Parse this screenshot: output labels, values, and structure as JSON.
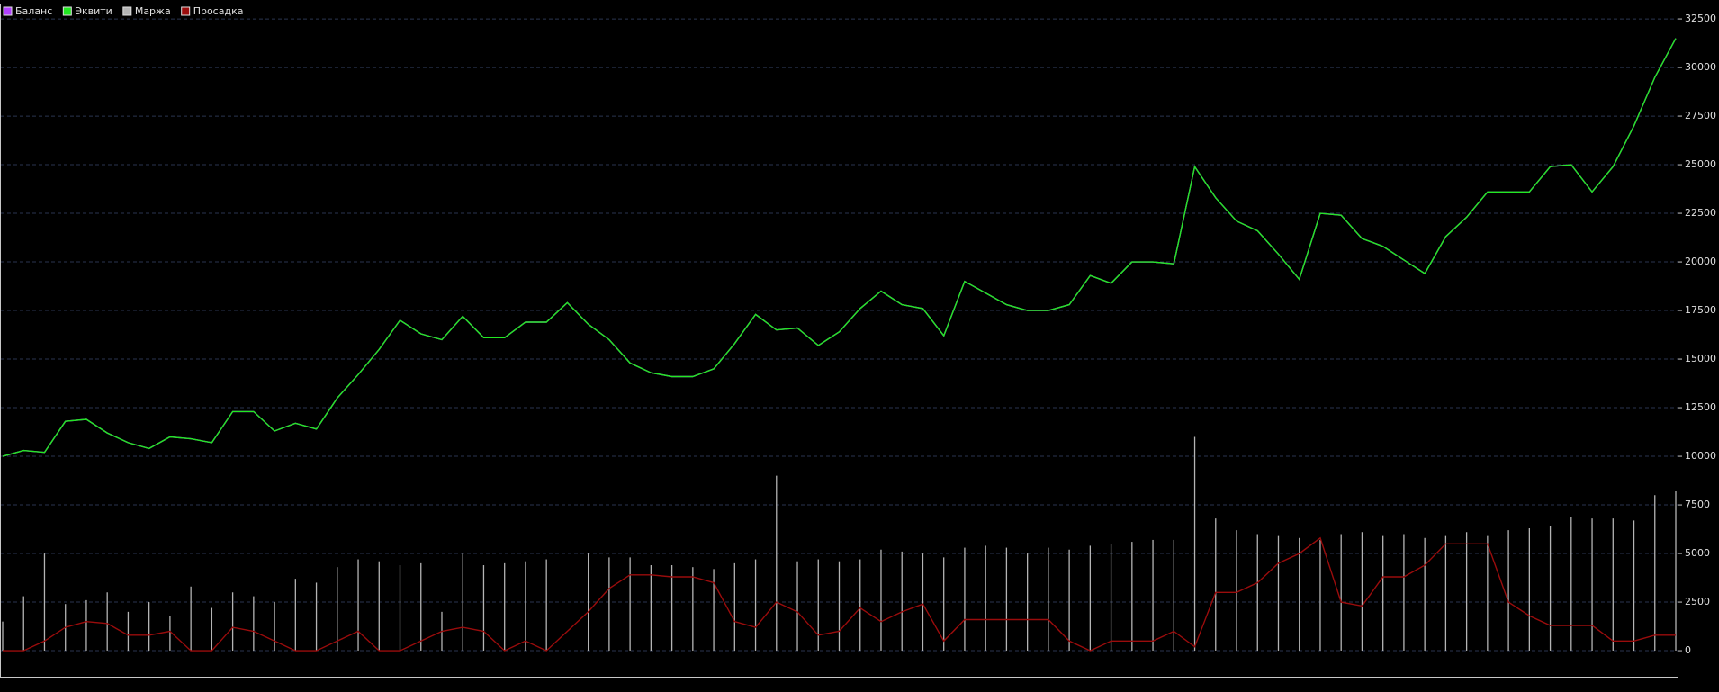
{
  "chart_data": {
    "type": "line",
    "ylim": [
      -1340,
      33290
    ],
    "yticks": [
      0,
      2500,
      5000,
      7500,
      10000,
      12500,
      15000,
      17500,
      20000,
      22500,
      25000,
      27500,
      30000,
      32500
    ],
    "grid": true,
    "legend": "top-left",
    "series": [
      {
        "name": "Баланс",
        "color": "#b040ff",
        "style": "line",
        "values": [
          10000,
          10300,
          10200,
          11800,
          11900,
          11200,
          10700,
          10400,
          11000,
          10900,
          10700,
          12300,
          12300,
          11300,
          11700,
          11400,
          13000,
          14200,
          15500,
          17000,
          16300,
          16000,
          17200,
          16100,
          16100,
          16900,
          16900,
          17900,
          16800,
          16000,
          14800,
          14300,
          14100,
          14100,
          14500,
          15800,
          17300,
          16500,
          16600,
          15700,
          16400,
          17600,
          18500,
          17800,
          17600,
          16200,
          19000,
          18400,
          17800,
          17500,
          17500,
          17800,
          19300,
          18900,
          20000,
          20000,
          19900,
          24900,
          23300,
          22100,
          21600,
          20400,
          19100,
          22500,
          22400,
          21200,
          20800,
          20100,
          19400,
          21300,
          22300,
          23600,
          23600,
          23600,
          24900,
          25000,
          23600,
          24900,
          27000,
          29500,
          31500
        ]
      },
      {
        "name": "Эквити",
        "color": "#22e822",
        "style": "line",
        "values": [
          10000,
          10300,
          10200,
          11800,
          11900,
          11200,
          10700,
          10400,
          11000,
          10900,
          10700,
          12300,
          12300,
          11300,
          11700,
          11400,
          13000,
          14200,
          15500,
          17000,
          16300,
          16000,
          17200,
          16100,
          16100,
          16900,
          16900,
          17900,
          16800,
          16000,
          14800,
          14300,
          14100,
          14100,
          14500,
          15800,
          17300,
          16500,
          16600,
          15700,
          16400,
          17600,
          18500,
          17800,
          17600,
          16200,
          19000,
          18400,
          17800,
          17500,
          17500,
          17800,
          19300,
          18900,
          20000,
          20000,
          19900,
          24900,
          23300,
          22100,
          21600,
          20400,
          19100,
          22500,
          22400,
          21200,
          20800,
          20100,
          19400,
          21300,
          22300,
          23600,
          23600,
          23600,
          24900,
          25000,
          23600,
          24900,
          27000,
          29500,
          31500
        ]
      },
      {
        "name": "Маржа",
        "color": "#b4b4b4",
        "style": "spikes",
        "values": [
          1500,
          2800,
          5000,
          2400,
          2600,
          3000,
          2000,
          2500,
          1800,
          3300,
          2200,
          3000,
          2800,
          2500,
          3700,
          3500,
          4300,
          4700,
          4600,
          4400,
          4500,
          2000,
          5000,
          4400,
          4500,
          4600,
          4700,
          0,
          5000,
          4800,
          4800,
          4400,
          4400,
          4300,
          4200,
          4500,
          4700,
          9000,
          4600,
          4700,
          4600,
          4700,
          5200,
          5100,
          5000,
          4800,
          5300,
          5400,
          5300,
          5000,
          5300,
          5200,
          5400,
          5500,
          5600,
          5700,
          5700,
          11000,
          6800,
          6200,
          6000,
          5900,
          5800,
          5700,
          6000,
          6100,
          5900,
          6000,
          5800,
          5900,
          6100,
          5900,
          6200,
          6300,
          6400,
          6900,
          6800,
          6800,
          6700,
          8000,
          8200
        ]
      },
      {
        "name": "Просадка",
        "color": "#9a0c0c",
        "style": "line",
        "values": [
          0,
          0,
          500,
          1200,
          1500,
          1400,
          800,
          800,
          1000,
          0,
          0,
          1200,
          1000,
          500,
          0,
          0,
          500,
          1000,
          0,
          0,
          500,
          1000,
          1200,
          1000,
          0,
          500,
          0,
          1000,
          2000,
          3200,
          3900,
          3900,
          3800,
          3800,
          3500,
          1500,
          1200,
          2500,
          2000,
          800,
          1000,
          2200,
          1500,
          2000,
          2400,
          500,
          1600,
          1600,
          1600,
          1600,
          1600,
          500,
          0,
          500,
          500,
          500,
          1000,
          200,
          3000,
          3000,
          3500,
          4500,
          5000,
          5800,
          2500,
          2300,
          3800,
          3800,
          4400,
          5500,
          5500,
          5500,
          2500,
          1800,
          1300,
          1300,
          1300,
          500,
          500,
          800,
          800
        ]
      }
    ]
  }
}
